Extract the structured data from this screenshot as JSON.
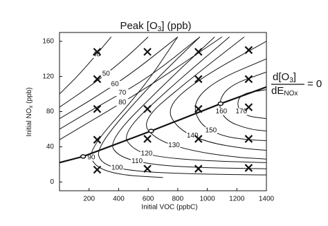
{
  "chart_data": {
    "type": "contour",
    "title": [
      "Peak [O",
      "3",
      "]  (ppb)"
    ],
    "x_label": "Initial VOC  (ppbC)",
    "y_label": [
      "Initial NO",
      "x",
      " (ppb)"
    ],
    "annotation": {
      "numerator": [
        "d[O",
        "3",
        "]"
      ],
      "denominator": [
        "dE",
        "NOx"
      ],
      "equals": "= 0"
    },
    "xlim": [
      0,
      1400
    ],
    "ylim": [
      -10,
      170
    ],
    "xticks": [
      200,
      400,
      600,
      800,
      1000,
      1200,
      1400
    ],
    "yticks": [
      0,
      40,
      80,
      120,
      160
    ],
    "color": "#111111",
    "contours": [
      {
        "level": 40,
        "voc": [
          0,
          150,
          350
        ],
        "nox": [
          100,
          125,
          165
        ]
      },
      {
        "level": 50,
        "voc": [
          0,
          200,
          430,
          600
        ],
        "nox": [
          85,
          108,
          138,
          165
        ]
      },
      {
        "level": 60,
        "voc": [
          0,
          250,
          500,
          800
        ],
        "nox": [
          72,
          97,
          125,
          165
        ]
      },
      {
        "level": 70,
        "voc": [
          0,
          250,
          600,
          950
        ],
        "nox": [
          60,
          85,
          118,
          165
        ]
      },
      {
        "level": 80,
        "voc": [
          0,
          250,
          600,
          1100
        ],
        "nox": [
          48,
          73,
          108,
          165
        ]
      },
      {
        "level": 90,
        "voc": [
          800,
          560,
          200,
          230,
          400,
          700
        ],
        "nox": [
          165,
          105,
          38,
          18,
          8,
          5
        ]
      },
      {
        "level": 100,
        "voc": [
          950,
          600,
          250,
          280,
          500,
          900,
          1400
        ],
        "nox": [
          165,
          108,
          40,
          20,
          12,
          9,
          8
        ]
      },
      {
        "level": 110,
        "voc": [
          1050,
          700,
          330,
          400,
          650,
          1000,
          1400
        ],
        "nox": [
          165,
          110,
          47,
          28,
          19,
          16,
          15
        ]
      },
      {
        "level": 120,
        "voc": [
          1150,
          780,
          420,
          500,
          680,
          1000,
          1400
        ],
        "nox": [
          165,
          112,
          56,
          36,
          28,
          24,
          22
        ]
      },
      {
        "level": 130,
        "voc": [
          1250,
          870,
          550,
          650,
          900,
          1200,
          1400
        ],
        "nox": [
          165,
          115,
          70,
          48,
          35,
          28,
          26
        ]
      },
      {
        "level": 140,
        "voc": [
          1400,
          950,
          720,
          800,
          1000,
          1250,
          1400
        ],
        "nox": [
          160,
          118,
          85,
          60,
          45,
          38,
          36
        ]
      },
      {
        "level": 150,
        "voc": [
          1400,
          1050,
          900,
          950,
          1100,
          1270,
          1400
        ],
        "nox": [
          140,
          115,
          90,
          65,
          52,
          48,
          47
        ]
      },
      {
        "level": 160,
        "voc": [
          1400,
          1150,
          1070,
          1120,
          1280,
          1400
        ],
        "nox": [
          125,
          110,
          90,
          70,
          60,
          58
        ]
      },
      {
        "level": 170,
        "voc": [
          1400,
          1220,
          1200,
          1260,
          1400
        ],
        "nox": [
          105,
          100,
          85,
          75,
          72
        ]
      }
    ],
    "ridge": {
      "voc": [
        0,
        160,
        620,
        1090,
        1400
      ],
      "nox": [
        22,
        29,
        58,
        89,
        108
      ]
    },
    "markers": {
      "voc": [
        255,
        255,
        255,
        255,
        255,
        595,
        595,
        595,
        595,
        940,
        940,
        940,
        940,
        940,
        1280,
        1280,
        1280,
        1280,
        1280
      ],
      "nox": [
        148,
        117,
        83,
        48,
        14,
        148,
        83,
        49,
        15,
        148,
        117,
        83,
        49,
        15,
        150,
        117,
        85,
        49,
        16
      ]
    }
  }
}
